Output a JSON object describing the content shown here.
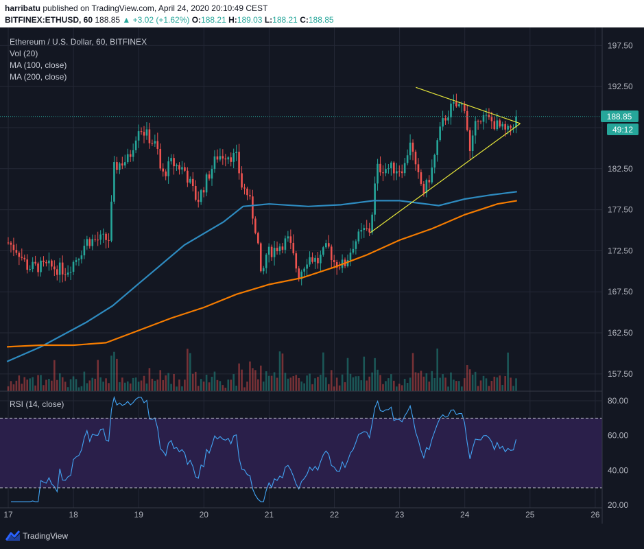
{
  "header": {
    "author": "harribatu",
    "published_text": "published on TradingView.com, April 24, 2020 20:10:49 CEST",
    "symbol": "BITFINEX:ETHUSD, 60",
    "last": "188.85",
    "change": "+3.02 (+1.62%)",
    "ohlc": {
      "O": "188.21",
      "H": "189.03",
      "L": "188.21",
      "C": "188.85"
    }
  },
  "legend": {
    "title": "Ethereum / U.S. Dollar, 60, BITFINEX",
    "vol": "Vol (20)",
    "ma100": "MA (100, close)",
    "ma200": "MA (200, close)",
    "rsi": "RSI (14, close)"
  },
  "price_badge": {
    "value": "188.85",
    "countdown": "49:12"
  },
  "footer": {
    "brand": "TradingView"
  },
  "colors": {
    "background": "#131722",
    "up": "#26a69a",
    "down": "#ef5350",
    "ma100": "#2e8bc0",
    "ma200": "#f57c00",
    "triangle": "#e6e63a",
    "rsi_line": "#42a5f5",
    "rsi_band": "#2a1f4a"
  },
  "chart_data": {
    "type": "candlestick",
    "timeframe": "60",
    "x_ticks": [
      "17",
      "18",
      "19",
      "20",
      "21",
      "22",
      "23",
      "24",
      "25",
      "26"
    ],
    "price_ticks": [
      157.5,
      162.5,
      167.5,
      172.5,
      177.5,
      182.5,
      187.5,
      192.5,
      197.5
    ],
    "price_range": [
      155.4,
      199.7
    ],
    "rsi_ticks": [
      20,
      40,
      60,
      80
    ],
    "rsi_range": [
      18.5,
      85.5
    ],
    "rsi_levels": [
      30,
      70
    ],
    "current_price": 188.85,
    "ma100_keypoints": [
      [
        16.98,
        159.0
      ],
      [
        17.5,
        160.8
      ],
      [
        18.2,
        163.8
      ],
      [
        18.6,
        165.8
      ],
      [
        19.0,
        168.5
      ],
      [
        19.3,
        170.5
      ],
      [
        19.7,
        173.2
      ],
      [
        20.3,
        176.0
      ],
      [
        20.6,
        177.9
      ],
      [
        21.0,
        178.2
      ],
      [
        21.6,
        177.9
      ],
      [
        22.1,
        178.1
      ],
      [
        22.6,
        178.6
      ],
      [
        23.0,
        178.6
      ],
      [
        23.3,
        178.3
      ],
      [
        23.6,
        178.0
      ],
      [
        24.0,
        178.8
      ],
      [
        24.4,
        179.3
      ],
      [
        24.8,
        179.7
      ]
    ],
    "ma200_keypoints": [
      [
        16.98,
        160.8
      ],
      [
        17.5,
        161.0
      ],
      [
        18.0,
        161.0
      ],
      [
        18.5,
        161.3
      ],
      [
        19.0,
        162.8
      ],
      [
        19.5,
        164.3
      ],
      [
        20.0,
        165.6
      ],
      [
        20.5,
        167.2
      ],
      [
        21.0,
        168.4
      ],
      [
        21.5,
        169.2
      ],
      [
        22.0,
        170.5
      ],
      [
        22.5,
        172.0
      ],
      [
        23.0,
        173.8
      ],
      [
        23.5,
        175.2
      ],
      [
        24.0,
        176.9
      ],
      [
        24.5,
        178.2
      ],
      [
        24.8,
        178.6
      ]
    ],
    "triangle": {
      "upper": [
        [
          23.25,
          192.4
        ],
        [
          24.85,
          188.0
        ]
      ],
      "lower": [
        [
          22.55,
          174.7
        ],
        [
          24.85,
          188.0
        ]
      ]
    }
  }
}
